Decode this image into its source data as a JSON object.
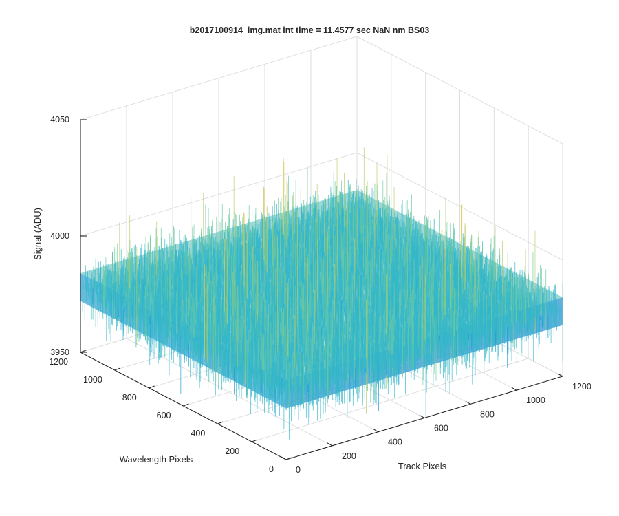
{
  "chart_data": {
    "type": "surface",
    "title": "b2017100914_img.mat int time = 11.4577 sec  NaN nm BS03",
    "zlabel": "Signal (ADU)",
    "ylabel": "Wavelength Pixels",
    "xlabel": "Track Pixels",
    "xlim": [
      0,
      1200
    ],
    "ylim": [
      0,
      1200
    ],
    "zlim": [
      3950,
      4050
    ],
    "x_ticks": [
      "0",
      "200",
      "400",
      "600",
      "800",
      "1000",
      "1200"
    ],
    "y_ticks": [
      "0",
      "200",
      "400",
      "600",
      "800",
      "1000",
      "1200"
    ],
    "z_ticks": [
      "3950",
      "4000",
      "4050"
    ],
    "grid": true,
    "surface": {
      "mean_signal": 3978,
      "noise_min": 3955,
      "noise_max": 4025,
      "colormap": [
        "#0072bd",
        "#1a9ad6",
        "#33b7c9",
        "#6cc9a0",
        "#b8cc6a",
        "#e8c84a"
      ]
    }
  }
}
